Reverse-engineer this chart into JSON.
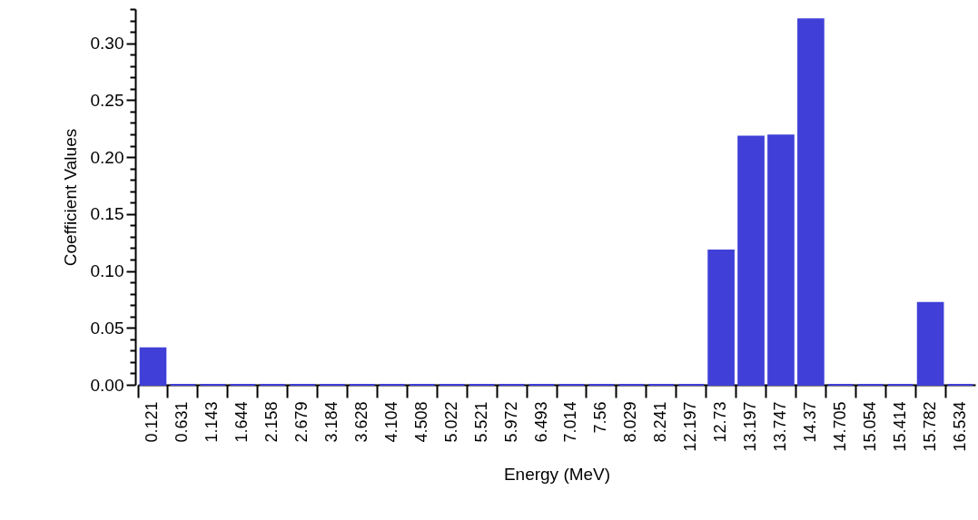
{
  "chart_data": {
    "type": "bar",
    "xlabel": "Energy (MeV)",
    "ylabel": "Coefficient Values",
    "categories": [
      "0.121",
      "0.631",
      "1.143",
      "1.644",
      "2.158",
      "2.679",
      "3.184",
      "3.628",
      "4.104",
      "4.508",
      "5.022",
      "5.521",
      "5.972",
      "6.493",
      "7.014",
      "7.56",
      "8.029",
      "8.241",
      "12.197",
      "12.73",
      "13.197",
      "13.747",
      "14.37",
      "14.705",
      "15.054",
      "15.414",
      "15.782",
      "16.534"
    ],
    "series": [
      {
        "color": "#4040d8",
        "values": [
          0.032,
          0,
          0,
          0,
          0,
          0,
          0,
          0,
          0,
          0,
          0,
          0,
          0,
          0,
          0,
          0,
          0,
          0,
          0,
          0.118,
          0.218,
          0.219,
          0.321,
          0,
          0,
          0,
          0.072,
          0
        ]
      }
    ],
    "ylim": [
      0,
      0.33
    ],
    "yticks": [
      {
        "value": 0,
        "label": "0.00"
      },
      {
        "value": 0.01,
        "label": null
      },
      {
        "value": 0.02,
        "label": null
      },
      {
        "value": 0.03,
        "label": null
      },
      {
        "value": 0.04,
        "label": null
      },
      {
        "value": 0.05,
        "label": "0.05"
      },
      {
        "value": 0.06,
        "label": null
      },
      {
        "value": 0.07,
        "label": null
      },
      {
        "value": 0.08,
        "label": null
      },
      {
        "value": 0.09,
        "label": null
      },
      {
        "value": 0.1,
        "label": "0.10"
      },
      {
        "value": 0.11,
        "label": null
      },
      {
        "value": 0.12,
        "label": null
      },
      {
        "value": 0.13,
        "label": null
      },
      {
        "value": 0.14,
        "label": null
      },
      {
        "value": 0.15,
        "label": "0.15"
      },
      {
        "value": 0.16,
        "label": null
      },
      {
        "value": 0.17,
        "label": null
      },
      {
        "value": 0.18,
        "label": null
      },
      {
        "value": 0.19,
        "label": null
      },
      {
        "value": 0.2,
        "label": "0.20"
      },
      {
        "value": 0.21,
        "label": null
      },
      {
        "value": 0.22,
        "label": null
      },
      {
        "value": 0.23,
        "label": null
      },
      {
        "value": 0.24,
        "label": null
      },
      {
        "value": 0.25,
        "label": "0.25"
      },
      {
        "value": 0.26,
        "label": null
      },
      {
        "value": 0.27,
        "label": null
      },
      {
        "value": 0.28,
        "label": null
      },
      {
        "value": 0.29,
        "label": null
      },
      {
        "value": 0.3,
        "label": "0.30"
      },
      {
        "value": 0.31,
        "label": null
      },
      {
        "value": 0.32,
        "label": null
      },
      {
        "value": 0.33,
        "label": null
      }
    ],
    "grid": false
  }
}
